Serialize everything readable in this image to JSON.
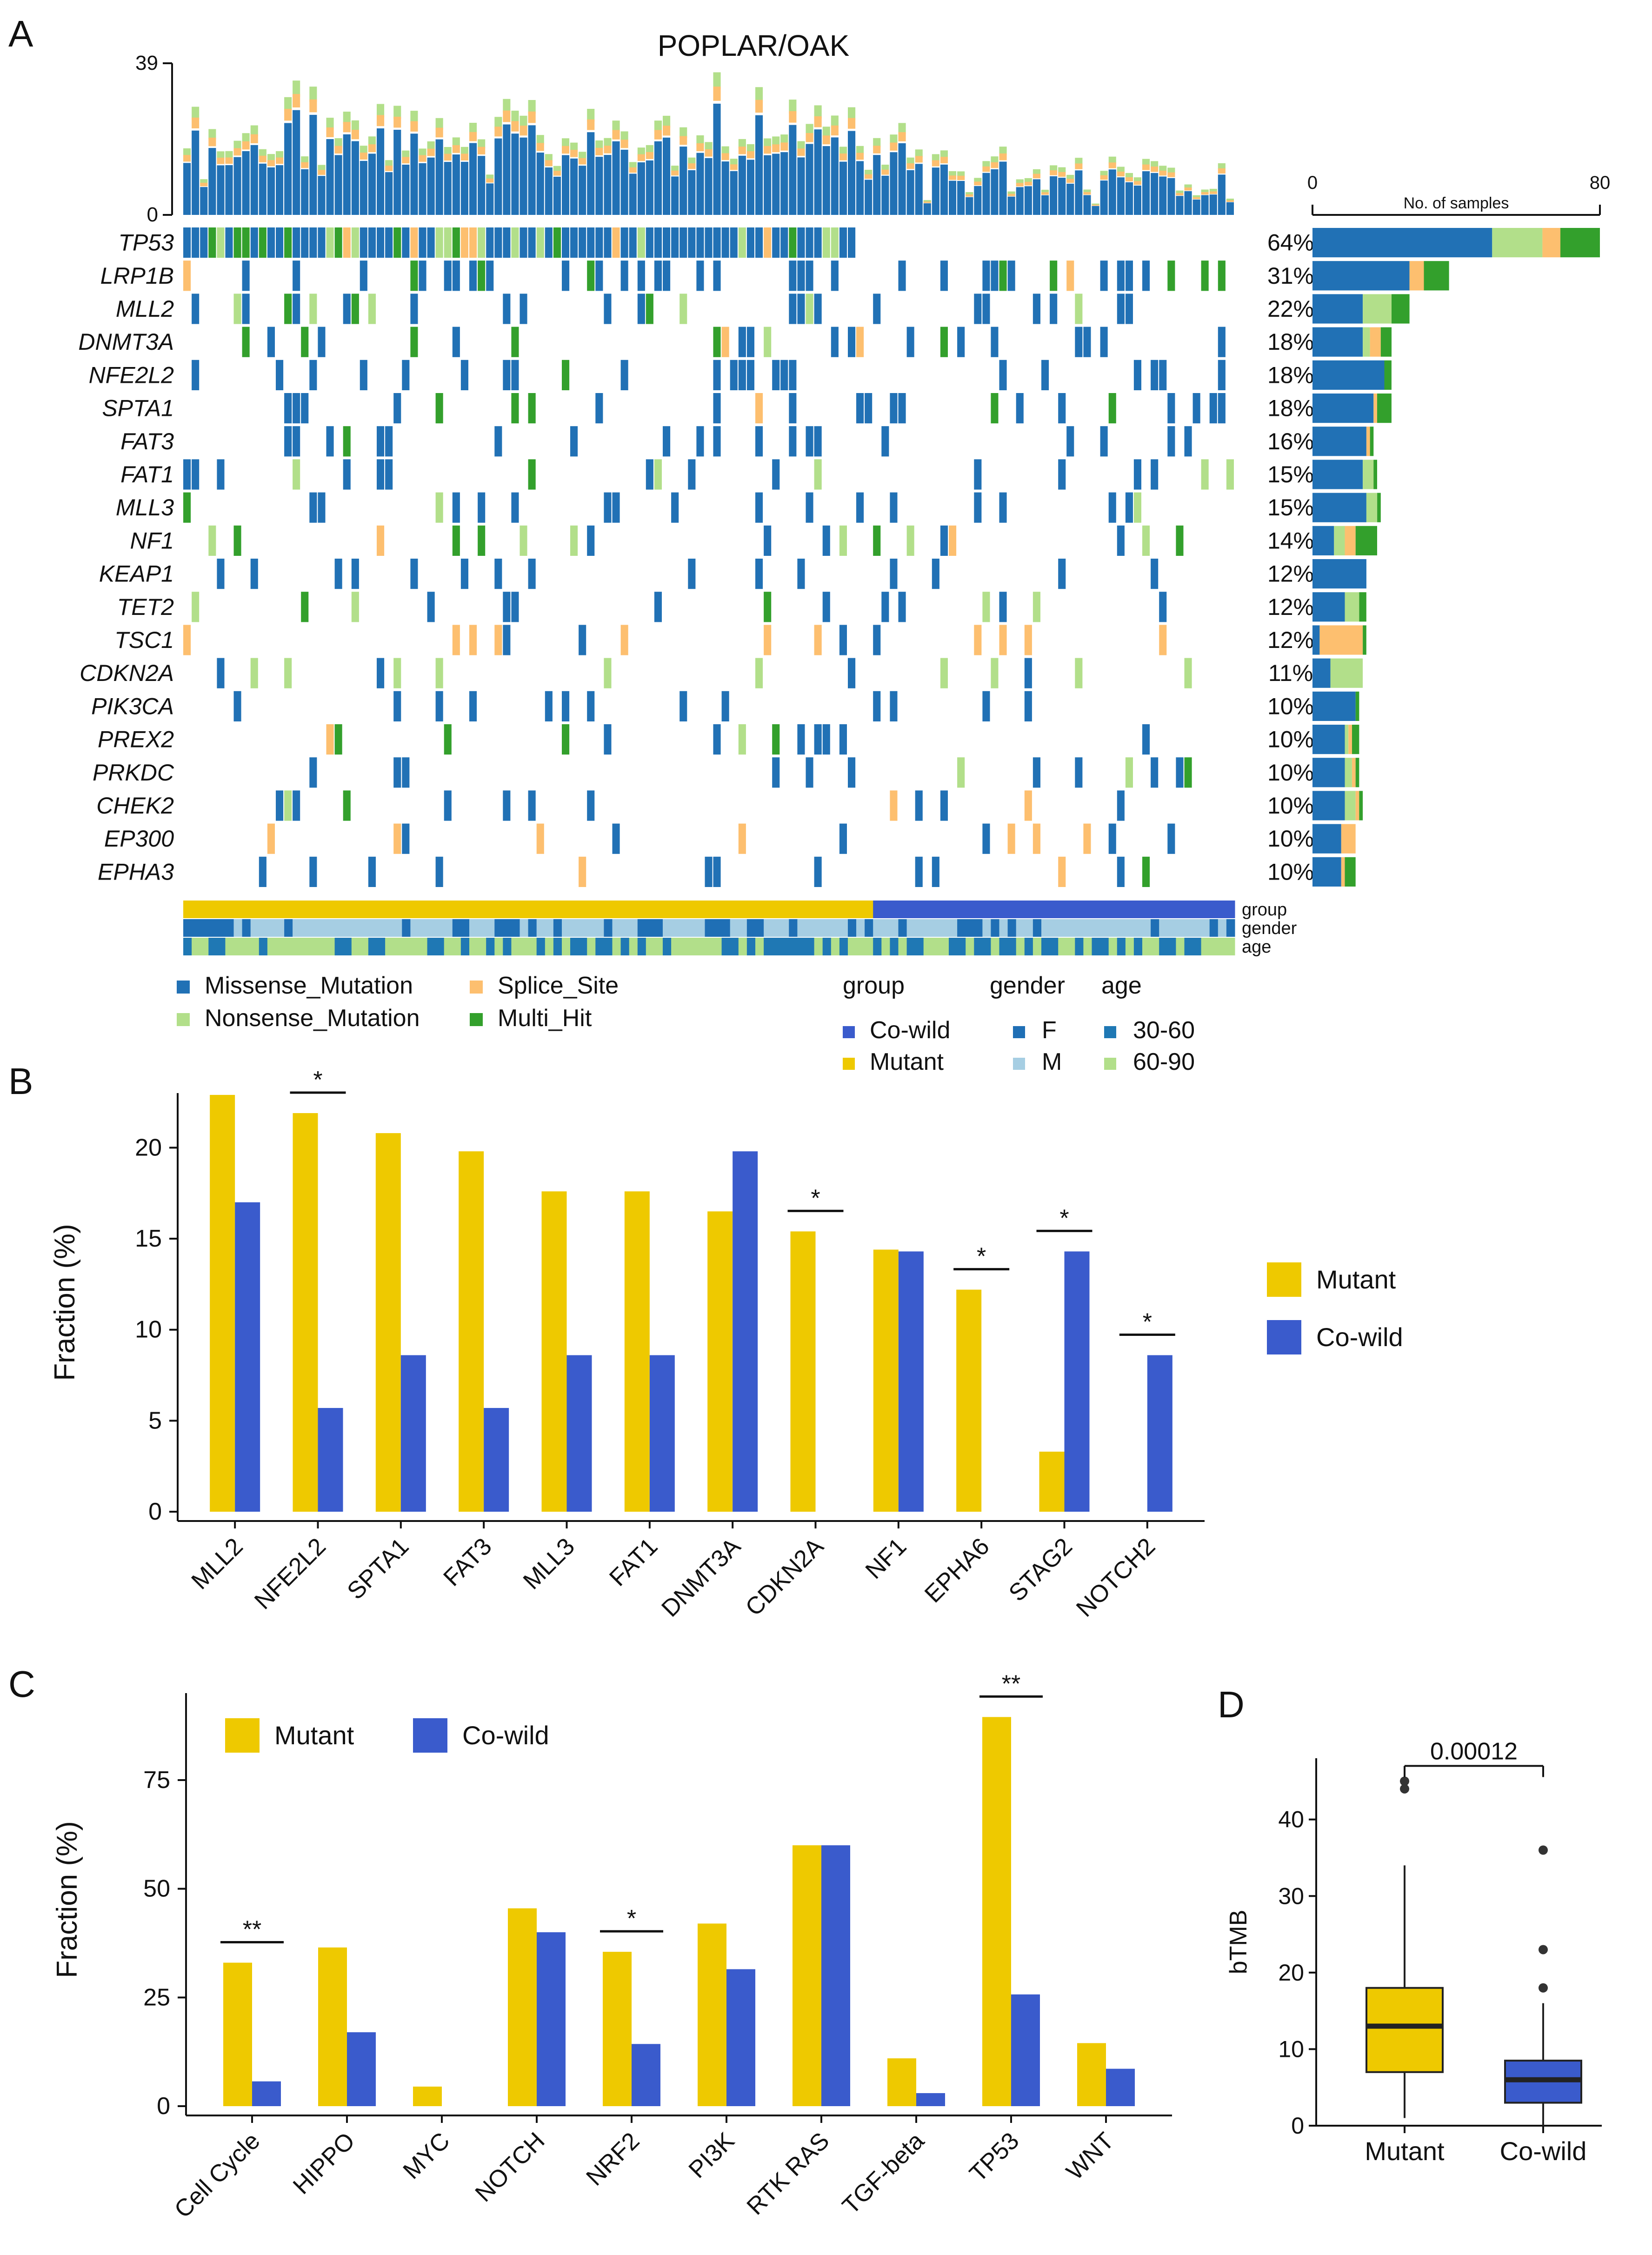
{
  "colors": {
    "missense": "#2171B5",
    "splice": "#FDBF6F",
    "nonsense": "#B2DF8A",
    "multihit": "#33A02C",
    "mutant": "#EEC900",
    "cowild": "#3A5BCC",
    "female": "#1F6FB5",
    "male": "#A6CEE3",
    "age_young": "#1F78B4",
    "age_old": "#B2DF8A"
  },
  "panel_labels": [
    "A",
    "B",
    "C",
    "D"
  ],
  "panel_a": {
    "title": "POPLAR/OAK",
    "tmb_axis": {
      "max_label": "39",
      "min_label": "0"
    },
    "bar_axis": {
      "min_label": "0",
      "max_label": "80",
      "title": "No. of samples"
    },
    "genes": [
      "TP53",
      "LRP1B",
      "MLL2",
      "DNMT3A",
      "NFE2L2",
      "SPTA1",
      "FAT3",
      "FAT1",
      "MLL3",
      "NF1",
      "KEAP1",
      "TET2",
      "TSC1",
      "CDKN2A",
      "PIK3CA",
      "PREX2",
      "PRKDC",
      "CHEK2",
      "EP300",
      "EPHA3"
    ],
    "percents": [
      "64%",
      "31%",
      "22%",
      "18%",
      "18%",
      "18%",
      "16%",
      "15%",
      "15%",
      "14%",
      "12%",
      "12%",
      "12%",
      "11%",
      "10%",
      "10%",
      "10%",
      "10%",
      "10%",
      "10%"
    ],
    "annotation_labels": [
      "group",
      "gender",
      "age"
    ],
    "legend": {
      "variants": [
        "Missense_Mutation",
        "Splice_Site",
        "Nonsense_Mutation",
        "Multi_Hit"
      ],
      "group_title": "group",
      "group_items": [
        "Co-wild",
        "Mutant"
      ],
      "gender_title": "gender",
      "gender_items": [
        "F",
        "M"
      ],
      "age_title": "age",
      "age_items": [
        "30-60",
        "60-90"
      ]
    }
  },
  "chart_data": [
    {
      "type": "bar",
      "panel": "A-right",
      "title": "No. of samples",
      "categories": [
        "TP53",
        "LRP1B",
        "MLL2",
        "DNMT3A",
        "NFE2L2",
        "SPTA1",
        "FAT3",
        "FAT1",
        "MLL3",
        "NF1",
        "KEAP1",
        "TET2",
        "TSC1",
        "CDKN2A",
        "PIK3CA",
        "PREX2",
        "PRKDC",
        "CHEK2",
        "EP300",
        "EPHA3"
      ],
      "series": [
        {
          "name": "Missense_Mutation",
          "values": [
            50,
            27,
            14,
            14,
            20,
            17,
            15,
            14,
            15,
            6,
            15,
            9,
            2,
            5,
            12,
            9,
            9,
            9,
            8,
            8
          ]
        },
        {
          "name": "Nonsense_Mutation",
          "values": [
            14,
            0,
            8,
            2,
            0,
            0,
            0,
            3,
            3,
            3,
            0,
            4,
            0,
            9,
            0,
            1,
            2,
            3,
            0,
            0
          ]
        },
        {
          "name": "Splice_Site",
          "values": [
            5,
            4,
            0,
            3,
            0,
            1,
            1,
            0,
            0,
            3,
            0,
            0,
            12,
            0,
            0,
            1,
            1,
            1,
            4,
            1
          ]
        },
        {
          "name": "Multi_Hit",
          "values": [
            11,
            7,
            5,
            3,
            2,
            4,
            1,
            1,
            1,
            6,
            0,
            2,
            1,
            0,
            1,
            2,
            1,
            1,
            0,
            3
          ]
        }
      ],
      "xlim": [
        0,
        80
      ]
    },
    {
      "type": "bar",
      "panel": "B",
      "ylabel": "Fraction (%)",
      "ylim": [
        0,
        23
      ],
      "yticks": [
        "0",
        "5",
        "10",
        "15",
        "20"
      ],
      "categories": [
        "MLL2",
        "NFE2L2",
        "SPTA1",
        "FAT3",
        "MLL3",
        "FAT1",
        "DNMT3A",
        "CDKN2A",
        "NF1",
        "EPHA6",
        "STAG2",
        "NOTCH2"
      ],
      "series": [
        {
          "name": "Mutant",
          "values": [
            22.9,
            21.9,
            20.8,
            19.8,
            17.6,
            17.6,
            16.5,
            15.4,
            14.4,
            12.2,
            3.3,
            0
          ]
        },
        {
          "name": "Co-wild",
          "values": [
            17.0,
            5.7,
            8.6,
            5.7,
            8.6,
            8.6,
            19.8,
            0,
            14.3,
            0,
            14.3,
            8.6
          ]
        }
      ],
      "significance": [
        "",
        "*",
        "",
        "",
        "",
        "",
        "",
        "*",
        "",
        "*",
        "*",
        "*"
      ],
      "legend": [
        "Mutant",
        "Co-wild"
      ]
    },
    {
      "type": "bar",
      "panel": "C",
      "ylabel": "Fraction (%)",
      "ylim": [
        0,
        95
      ],
      "yticks": [
        "0",
        "25",
        "50",
        "75"
      ],
      "categories": [
        "Cell Cycle",
        "HIPPO",
        "MYC",
        "NOTCH",
        "NRF2",
        "PI3K",
        "RTK RAS",
        "TGF-beta",
        "TP53",
        "WNT"
      ],
      "series": [
        {
          "name": "Mutant",
          "values": [
            33,
            36.5,
            4.5,
            45.5,
            35.5,
            42,
            60,
            11,
            89.5,
            14.5
          ]
        },
        {
          "name": "Co-wild",
          "values": [
            5.7,
            17,
            0,
            40,
            14.3,
            31.5,
            60,
            3,
            25.7,
            8.6
          ]
        }
      ],
      "significance": [
        "**",
        "",
        "",
        "",
        "*",
        "",
        "",
        "",
        "**",
        ""
      ],
      "legend": [
        "Mutant",
        "Co-wild"
      ]
    },
    {
      "type": "box",
      "panel": "D",
      "ylabel": "bTMB",
      "ylim": [
        0,
        48
      ],
      "yticks": [
        "0",
        "10",
        "20",
        "30",
        "40"
      ],
      "categories": [
        "Mutant",
        "Co-wild"
      ],
      "boxes": [
        {
          "name": "Mutant",
          "min": 1,
          "q1": 7,
          "median": 13,
          "q3": 18,
          "max": 34,
          "outliers": [
            44,
            45
          ]
        },
        {
          "name": "Co-wild",
          "min": 0,
          "q1": 3,
          "median": 6,
          "q3": 8.5,
          "max": 16,
          "outliers": [
            18,
            23,
            36
          ]
        }
      ],
      "pvalue": "0.00012"
    }
  ]
}
